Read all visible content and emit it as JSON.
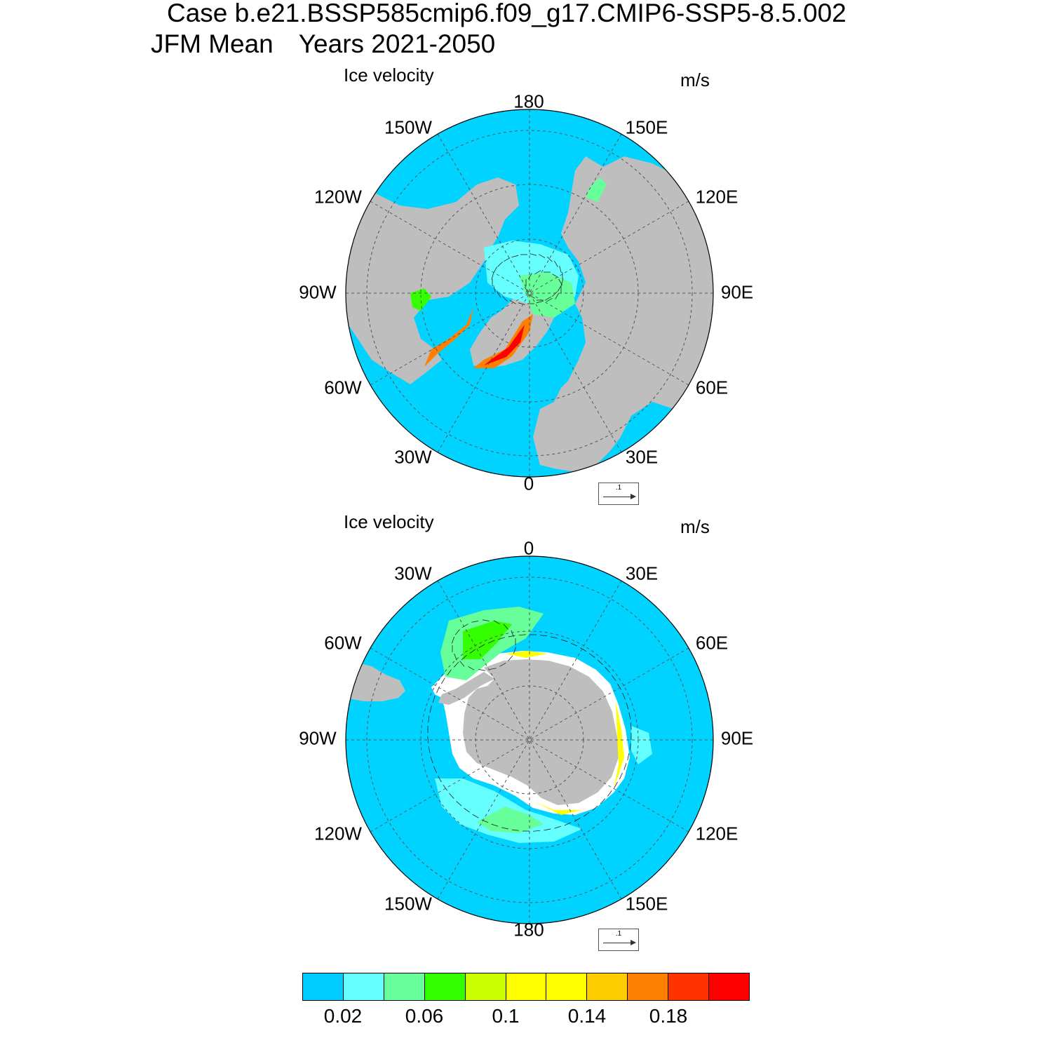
{
  "title_line1": "Case b.e21.BSSP585cmip6.f09_g17.CMIP6-SSP5-8.5.002",
  "title_season": "JFM Mean",
  "title_years": "Years 2021-2050",
  "colors": {
    "ocean": "#00d3ff",
    "land": "#bebebe",
    "no_data": "#ffffff",
    "grid": "#555555"
  },
  "panels": [
    {
      "hemisphere": "north",
      "title": "Ice velocity",
      "units": "m/s",
      "lon_labels": [
        "180",
        "150E",
        "120E",
        "90E",
        "60E",
        "30E",
        "0",
        "30W",
        "60W",
        "90W",
        "120W",
        "150W"
      ],
      "reference_vector": ".1"
    },
    {
      "hemisphere": "south",
      "title": "Ice velocity",
      "units": "m/s",
      "lon_labels": [
        "0",
        "30E",
        "60E",
        "90E",
        "120E",
        "150E",
        "180",
        "150W",
        "120W",
        "90W",
        "60W",
        "30W"
      ],
      "reference_vector": ".1"
    }
  ],
  "colorbar": {
    "colors": [
      "#00ccff",
      "#66ffff",
      "#66ff99",
      "#33ff00",
      "#ccff00",
      "#ffff00",
      "#ffff00",
      "#ffcc00",
      "#ff7f00",
      "#ff3300",
      "#ff0000"
    ],
    "tick_labels": [
      "0.02",
      "0.06",
      "0.1",
      "0.14",
      "0.18"
    ]
  }
}
